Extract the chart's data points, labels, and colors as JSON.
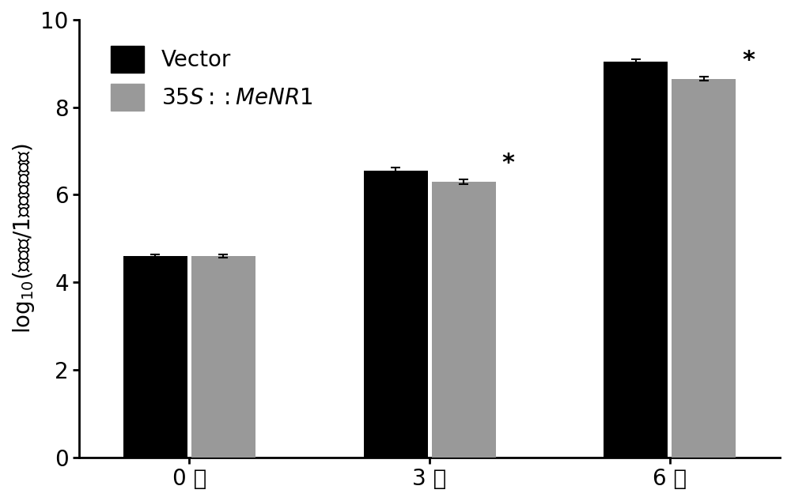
{
  "categories": [
    "0 天",
    "3 天",
    "6 天"
  ],
  "vector_values": [
    4.6,
    6.55,
    9.05
  ],
  "menr1_values": [
    4.6,
    6.3,
    8.65
  ],
  "vector_errors": [
    0.04,
    0.07,
    0.05
  ],
  "menr1_errors": [
    0.04,
    0.06,
    0.05
  ],
  "vector_color": "#000000",
  "menr1_color": "#999999",
  "ylim": [
    0,
    10
  ],
  "yticks": [
    0,
    2,
    4,
    6,
    8,
    10
  ],
  "bar_width": 0.32,
  "significance": [
    false,
    true,
    true
  ],
  "star_fontsize": 22,
  "axis_fontsize": 20,
  "tick_fontsize": 20,
  "legend_fontsize": 20,
  "figure_width": 10.0,
  "figure_height": 6.34,
  "dpi": 100
}
